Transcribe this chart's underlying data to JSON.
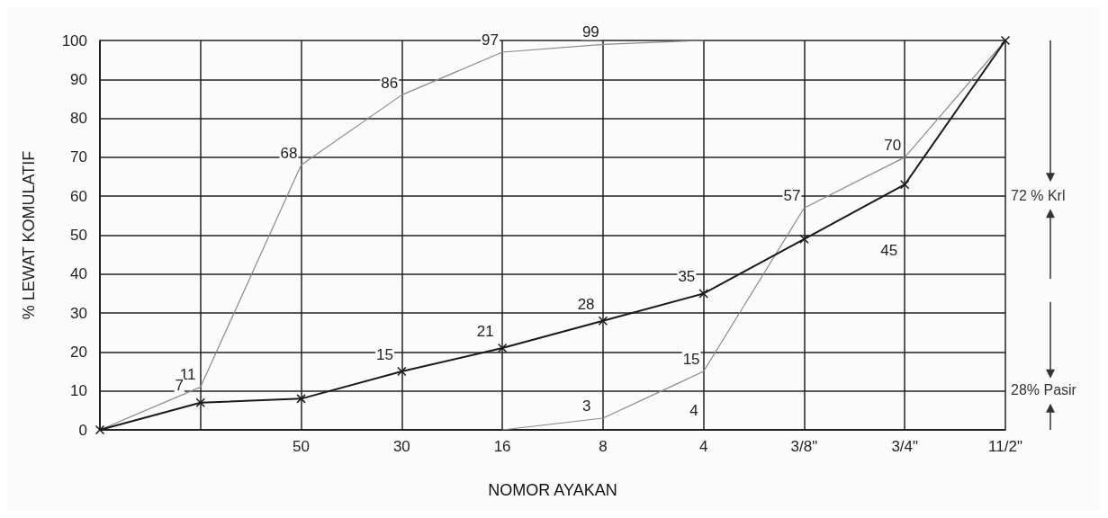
{
  "chart_data": {
    "type": "line",
    "xlabel": "NOMOR AYAKAN",
    "ylabel": "% LEWAT KOMULATIF",
    "categories": [
      null,
      null,
      "50",
      "30",
      "16",
      "8",
      "4",
      "3/8\"",
      "3/4\"",
      "11/2\""
    ],
    "ylim": [
      0,
      100
    ],
    "yticks": [
      0,
      10,
      20,
      30,
      40,
      50,
      60,
      70,
      80,
      90,
      100
    ],
    "grid": true,
    "series": [
      {
        "color": "#8a8a8a",
        "values": [
          0,
          11,
          68,
          86,
          97,
          99,
          100,
          null,
          null,
          null
        ],
        "marker": "none",
        "value_labels": [
          null,
          "11",
          "68",
          "86",
          "97",
          "99",
          null,
          null,
          null,
          null
        ]
      },
      {
        "color": "#8a8a8a",
        "values": [
          null,
          null,
          null,
          null,
          0,
          3,
          15,
          57,
          70,
          100
        ],
        "marker": "none",
        "value_labels": [
          null,
          null,
          null,
          null,
          null,
          "3",
          "15",
          "57",
          "70",
          null
        ]
      },
      {
        "color": "#1a1a1a",
        "values": [
          0,
          7,
          8,
          15,
          21,
          28,
          35,
          49,
          63,
          100
        ],
        "marker": "cross",
        "value_labels": [
          null,
          "7",
          null,
          "15",
          "21",
          "28",
          "35",
          null,
          null,
          null
        ]
      }
    ],
    "annotations": [
      "45",
      "4",
      "72 % Krl",
      "28% Pasir"
    ]
  }
}
